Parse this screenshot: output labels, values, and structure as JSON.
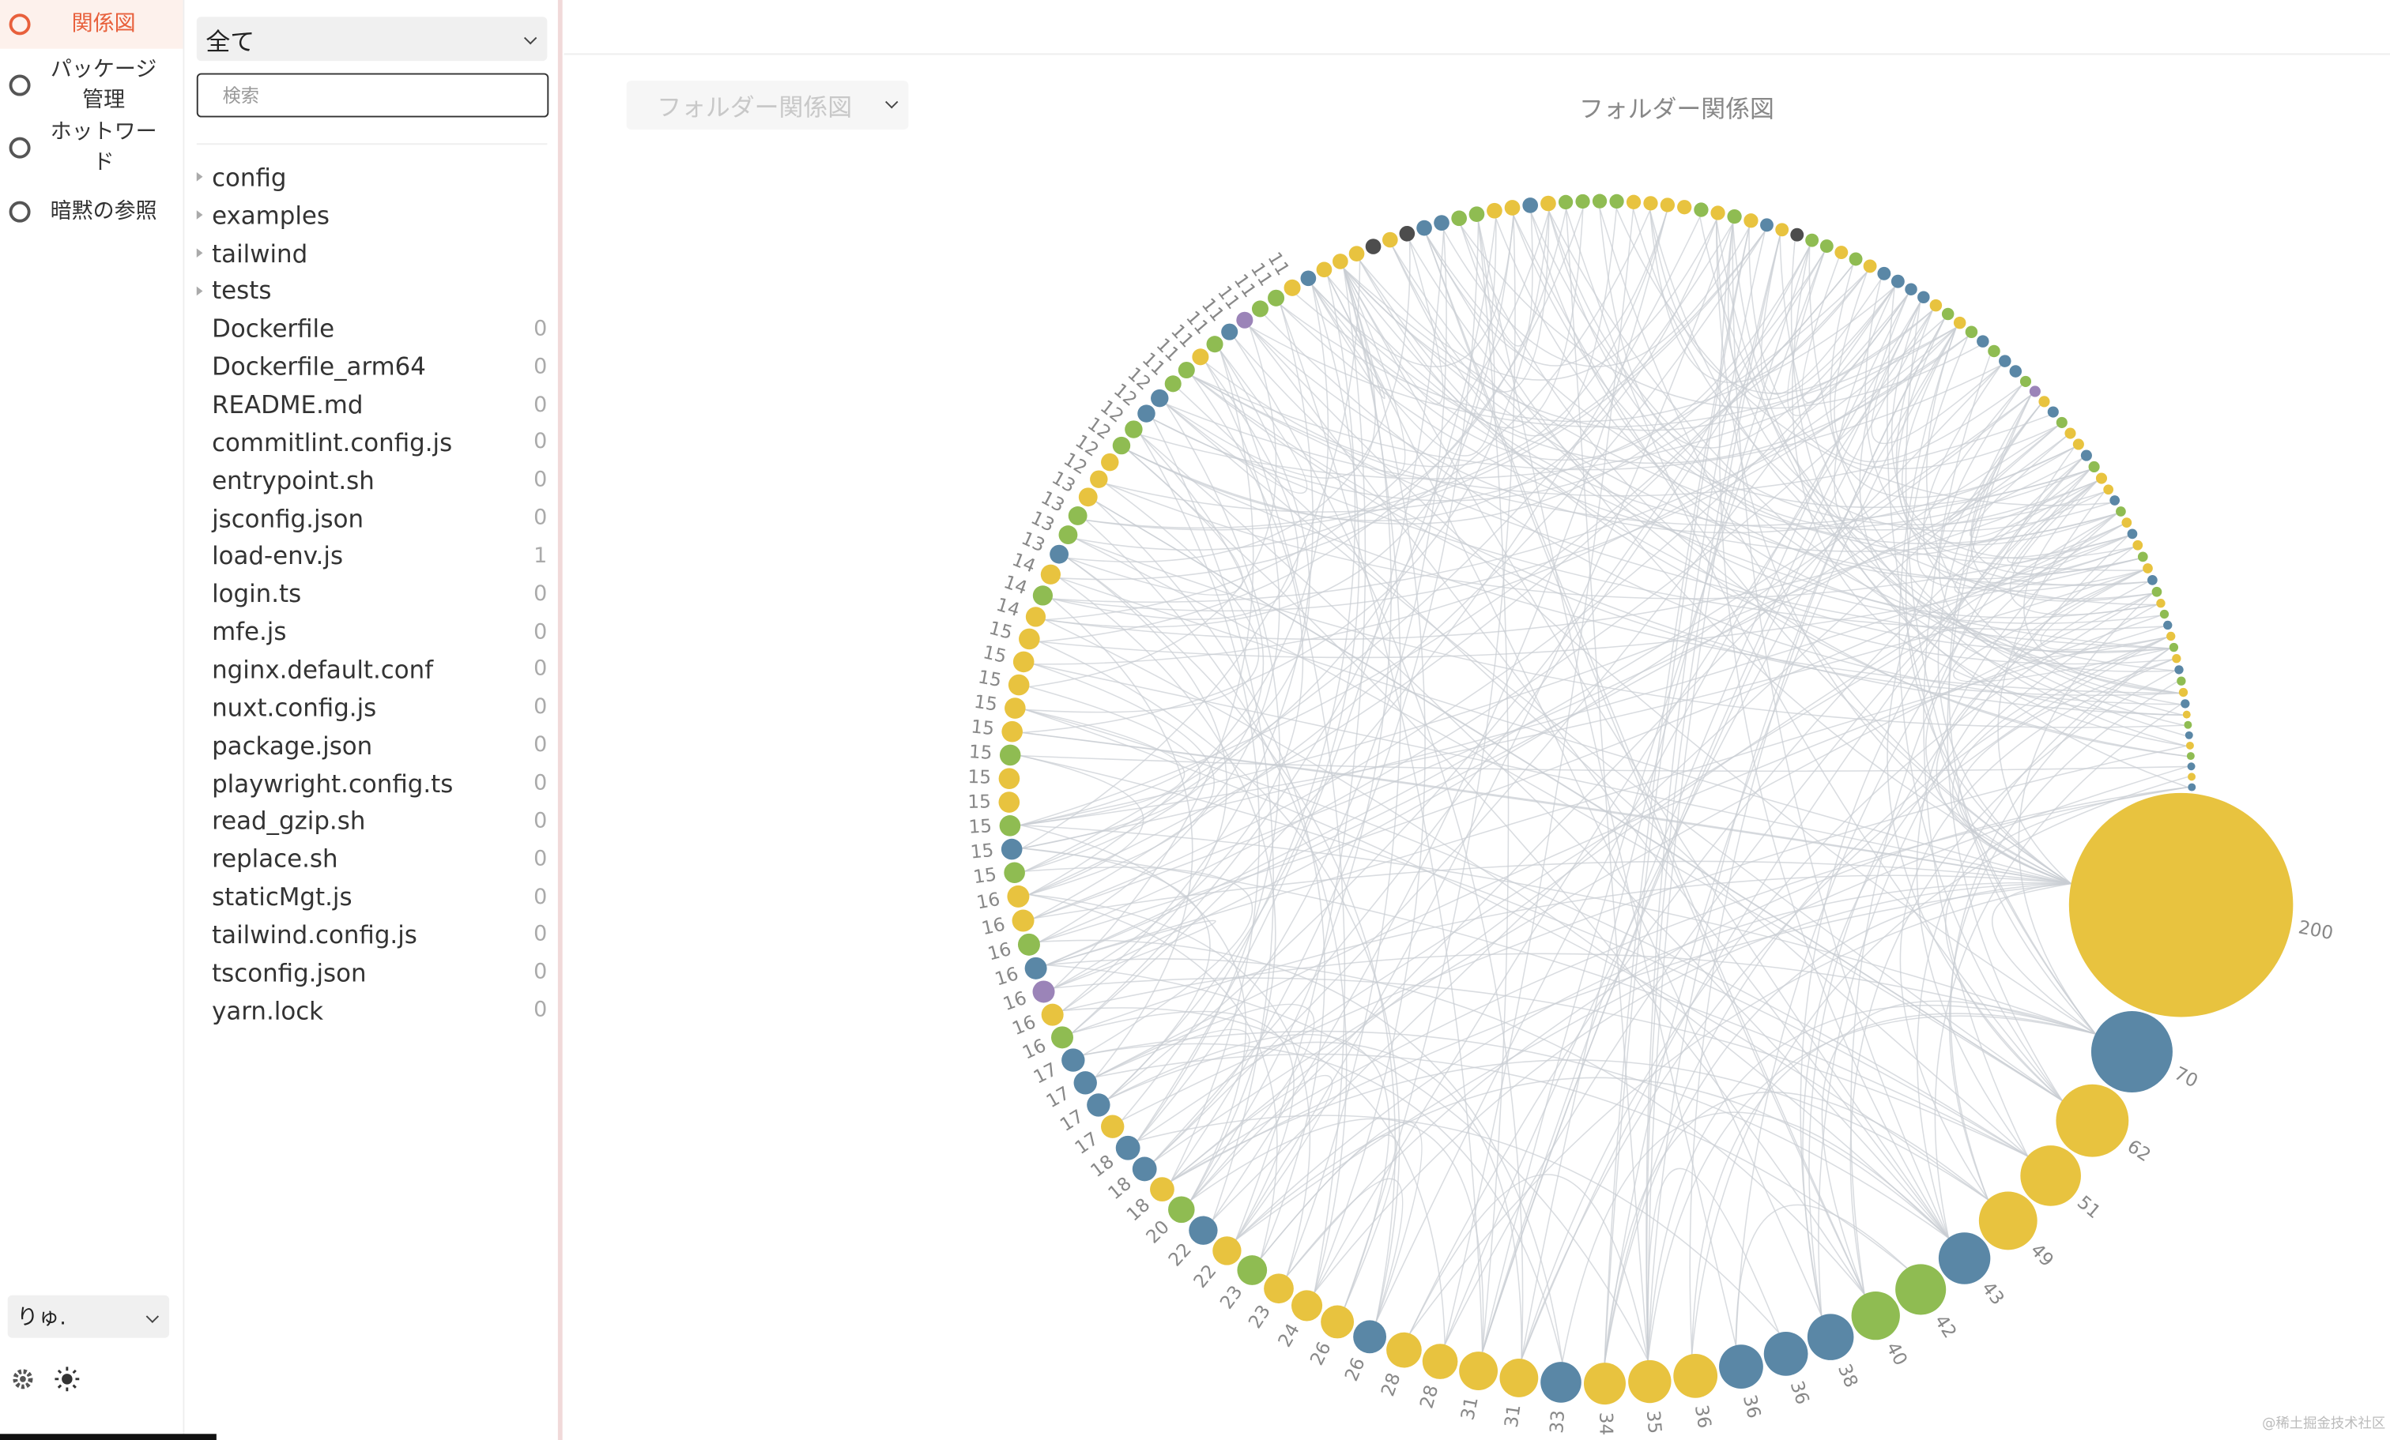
{
  "nav": {
    "active": 0,
    "items": [
      "関係図",
      "パッケージ管理",
      "ホットワード",
      "暗黙の参照"
    ],
    "user": "りゅ."
  },
  "files": {
    "filter": "全て",
    "search_placeholder": "検索",
    "folders": [
      "config",
      "examples",
      "tailwind",
      "tests"
    ],
    "files": [
      {
        "name": "Dockerfile",
        "count": 0
      },
      {
        "name": "Dockerfile_arm64",
        "count": 0
      },
      {
        "name": "README.md",
        "count": 0
      },
      {
        "name": "commitlint.config.js",
        "count": 0
      },
      {
        "name": "entrypoint.sh",
        "count": 0
      },
      {
        "name": "jsconfig.json",
        "count": 0
      },
      {
        "name": "load-env.js",
        "count": 1
      },
      {
        "name": "login.ts",
        "count": 0
      },
      {
        "name": "mfe.js",
        "count": 0
      },
      {
        "name": "nginx.default.conf",
        "count": 0
      },
      {
        "name": "nuxt.config.js",
        "count": 0
      },
      {
        "name": "package.json",
        "count": 0
      },
      {
        "name": "playwright.config.ts",
        "count": 0
      },
      {
        "name": "read_gzip.sh",
        "count": 0
      },
      {
        "name": "replace.sh",
        "count": 0
      },
      {
        "name": "staticMgt.js",
        "count": 0
      },
      {
        "name": "tailwind.config.js",
        "count": 0
      },
      {
        "name": "tsconfig.json",
        "count": 0
      },
      {
        "name": "yarn.lock",
        "count": 0
      }
    ]
  },
  "main": {
    "view_select": "フォルダー関係図",
    "title": "フォルダー関係図"
  },
  "graph": {
    "type": "circular-graph",
    "labeled_nodes": {
      "values": [
        200,
        70,
        62,
        51,
        49,
        43,
        42,
        40,
        38,
        36,
        36,
        36,
        35,
        34,
        33,
        31,
        31,
        28,
        28,
        26,
        26,
        24,
        23,
        23,
        22,
        22,
        20,
        18,
        18,
        18,
        17,
        17,
        17,
        17,
        16,
        16,
        16,
        16,
        16,
        16,
        16,
        15,
        15,
        15,
        15,
        15,
        15,
        15,
        15,
        15,
        15,
        15,
        14,
        14,
        14,
        13,
        13,
        13,
        13,
        12,
        12,
        12,
        12,
        12,
        12,
        11,
        11,
        11,
        11,
        11,
        11,
        11,
        11,
        11
      ],
      "colors": [
        "#e8c33f",
        "#5a87a6",
        "#e8c33f",
        "#e8c33f",
        "#e8c33f",
        "#5a87a6",
        "#8fbc52",
        "#8fbc52",
        "#5a87a6",
        "#5a87a6",
        "#5a87a6",
        "#e8c33f",
        "#e8c33f",
        "#e8c33f",
        "#5a87a6",
        "#e8c33f",
        "#e8c33f",
        "#e8c33f",
        "#e8c33f",
        "#5a87a6",
        "#e8c33f",
        "#e8c33f",
        "#e8c33f",
        "#8fbc52",
        "#e8c33f",
        "#5a87a6",
        "#8fbc52",
        "#e8c33f",
        "#5a87a6",
        "#5a87a6",
        "#e8c33f",
        "#5a87a6",
        "#5a87a6",
        "#5a87a6",
        "#8fbc52",
        "#e8c33f",
        "#9b84b8",
        "#5a87a6",
        "#8fbc52",
        "#e8c33f",
        "#e8c33f",
        "#8fbc52",
        "#5a87a6",
        "#8fbc52",
        "#e8c33f",
        "#e8c33f",
        "#8fbc52",
        "#e8c33f",
        "#e8c33f",
        "#e8c33f",
        "#e8c33f",
        "#e8c33f",
        "#e8c33f",
        "#8fbc52",
        "#e8c33f",
        "#5a87a6",
        "#8fbc52",
        "#8fbc52",
        "#e8c33f",
        "#e8c33f",
        "#e8c33f",
        "#8fbc52",
        "#8fbc52",
        "#5a87a6",
        "#5a87a6",
        "#8fbc52",
        "#8fbc52",
        "#e8c33f",
        "#8fbc52",
        "#5a87a6",
        "#9b84b8",
        "#8fbc52",
        "#8fbc52",
        "#e8c33f"
      ]
    },
    "small_nodes": {
      "values": [
        10,
        10,
        10,
        10,
        10,
        10,
        10,
        10,
        10,
        10,
        10,
        10,
        10,
        10,
        10,
        9,
        9,
        9,
        9,
        9,
        9,
        9,
        9,
        9,
        9,
        9,
        9,
        8,
        8,
        8,
        8,
        8,
        8,
        8,
        8,
        8,
        8,
        7,
        7,
        7,
        7,
        7,
        7,
        7,
        7,
        7,
        7,
        6,
        6,
        6,
        6,
        6,
        6,
        6,
        6,
        6,
        6,
        5,
        5,
        5,
        5,
        5,
        5,
        5,
        5,
        5,
        5,
        4,
        4,
        4,
        4,
        4,
        4,
        4,
        4,
        4,
        4,
        3,
        3,
        3,
        3,
        3,
        3,
        3,
        3
      ],
      "colors": [
        "#5a87a6",
        "#e8c33f",
        "#e8c33f",
        "#e8c33f",
        "#4d4d4d",
        "#e8c33f",
        "#4d4d4d",
        "#5a87a6",
        "#5a87a6",
        "#8fbc52",
        "#8fbc52",
        "#e8c33f",
        "#e8c33f",
        "#5a87a6",
        "#e8c33f",
        "#8fbc52",
        "#8fbc52",
        "#8fbc52",
        "#8fbc52",
        "#e8c33f",
        "#e8c33f",
        "#e8c33f",
        "#e8c33f",
        "#8fbc52",
        "#e8c33f",
        "#8fbc52",
        "#e8c33f",
        "#5a87a6",
        "#e8c33f",
        "#4d4d4d",
        "#8fbc52",
        "#8fbc52",
        "#e8c33f",
        "#8fbc52",
        "#e8c33f",
        "#5a87a6",
        "#5a87a6",
        "#5a87a6",
        "#5a87a6",
        "#e8c33f",
        "#8fbc52",
        "#e8c33f",
        "#8fbc52",
        "#5a87a6",
        "#8fbc52",
        "#5a87a6",
        "#5a87a6",
        "#8fbc52",
        "#9b84b8",
        "#e8c33f",
        "#5a87a6",
        "#8fbc52",
        "#e8c33f",
        "#e8c33f",
        "#5a87a6",
        "#8fbc52",
        "#e8c33f",
        "#e8c33f",
        "#5a87a6",
        "#8fbc52",
        "#e8c33f",
        "#5a87a6",
        "#e8c33f",
        "#8fbc52",
        "#e8c33f",
        "#5a87a6",
        "#8fbc52",
        "#e8c33f",
        "#8fbc52",
        "#5a87a6",
        "#e8c33f",
        "#8fbc52",
        "#e8c33f",
        "#5a87a6",
        "#8fbc52",
        "#e8c33f",
        "#5a87a6",
        "#e8c33f",
        "#8fbc52",
        "#5a87a6",
        "#e8c33f",
        "#8fbc52",
        "#5a87a6",
        "#e8c33f",
        "#5a87a6"
      ]
    }
  },
  "watermark": "@稀土掘金技术社区"
}
